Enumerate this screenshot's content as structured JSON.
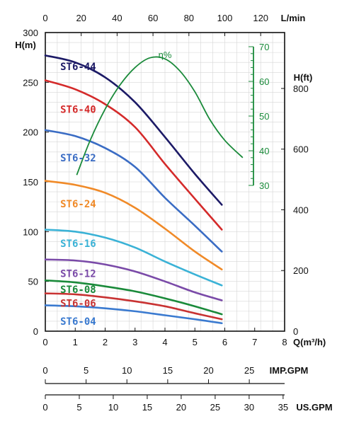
{
  "chart_data": {
    "type": "line",
    "title": "",
    "xlabel": "Q(m³/h)",
    "ylabel": "H(m)",
    "xlim": [
      0,
      8
    ],
    "ylim": [
      0,
      300
    ],
    "grid": true,
    "x_ticks": [
      "0",
      "1",
      "2",
      "3",
      "4",
      "5",
      "6",
      "7",
      "8"
    ],
    "y_ticks": [
      "0",
      "50",
      "100",
      "150",
      "200",
      "250",
      "300"
    ],
    "top_axis": {
      "label": "L/min",
      "ticks": [
        "0",
        "20",
        "40",
        "60",
        "80",
        "100",
        "120"
      ]
    },
    "right_axis": {
      "label": "H(ft)",
      "ticks": [
        "0",
        "200",
        "400",
        "600",
        "800"
      ]
    },
    "efficiency_axis": {
      "label": "η%",
      "ticks": [
        "30",
        "40",
        "50",
        "60",
        "70"
      ]
    },
    "imp_axis": {
      "label": "IMP.GPM",
      "ticks": [
        "0",
        "5",
        "10",
        "15",
        "20",
        "25"
      ]
    },
    "us_axis": {
      "label": "US.GPM",
      "ticks": [
        "0",
        "5",
        "10",
        "15",
        "20",
        "25",
        "30",
        "35"
      ]
    },
    "series": [
      {
        "name": "ST6-44",
        "color": "#1c1a66",
        "x": [
          0,
          1,
          2,
          3,
          4,
          5,
          5.9
        ],
        "y": [
          277,
          270,
          255,
          230,
          195,
          158,
          127
        ],
        "label_x": 0.5,
        "label_y": 266
      },
      {
        "name": "ST6-40",
        "color": "#d42a2a",
        "x": [
          0,
          1,
          2,
          3,
          4,
          5,
          5.9
        ],
        "y": [
          252,
          243,
          228,
          205,
          168,
          133,
          102
        ],
        "label_x": 0.5,
        "label_y": 223
      },
      {
        "name": "ST6-32",
        "color": "#3a6cc4",
        "x": [
          0,
          1,
          2,
          3,
          4,
          5,
          5.9
        ],
        "y": [
          202,
          196,
          184,
          165,
          134,
          106,
          80
        ],
        "label_x": 0.5,
        "label_y": 174
      },
      {
        "name": "ST6-24",
        "color": "#f08a28",
        "x": [
          0,
          1,
          2,
          3,
          4,
          5,
          5.9
        ],
        "y": [
          151,
          147,
          139,
          124,
          103,
          80,
          62
        ],
        "label_x": 0.5,
        "label_y": 128
      },
      {
        "name": "ST6-16",
        "color": "#3ab2d6",
        "x": [
          0,
          1,
          2,
          3,
          4,
          5,
          5.9
        ],
        "y": [
          102,
          100,
          94,
          84,
          70,
          57,
          46
        ],
        "label_x": 0.5,
        "label_y": 88
      },
      {
        "name": "ST6-12",
        "color": "#7a4aa8",
        "x": [
          0,
          1,
          2,
          3,
          4,
          5,
          5.9
        ],
        "y": [
          72,
          71,
          67,
          60,
          50,
          39,
          31
        ],
        "label_x": 0.5,
        "label_y": 58
      },
      {
        "name": "ST6-08",
        "color": "#1a8a3a",
        "x": [
          0,
          1,
          2,
          3,
          4,
          5,
          5.9
        ],
        "y": [
          51,
          49,
          45,
          40,
          33,
          25,
          17
        ],
        "label_x": 0.5,
        "label_y": 42
      },
      {
        "name": "ST6-06",
        "color": "#c83232",
        "x": [
          0,
          1,
          2,
          3,
          4,
          5,
          5.9
        ],
        "y": [
          38,
          37,
          34,
          30,
          25,
          18,
          12
        ],
        "label_x": 0.5,
        "label_y": 28
      },
      {
        "name": "ST6-04",
        "color": "#3a7ad0",
        "x": [
          0,
          1,
          2,
          3,
          4,
          5,
          5.9
        ],
        "y": [
          26,
          25,
          23,
          20,
          16,
          12,
          8
        ],
        "label_x": 0.5,
        "label_y": 10
      }
    ],
    "efficiency_curve": {
      "color": "#1a8a3a",
      "x": [
        1.05,
        1.5,
        2,
        2.5,
        3,
        3.5,
        4,
        4.5,
        5,
        5.5,
        6,
        6.6
      ],
      "eff": [
        33,
        43,
        52,
        59,
        64,
        66.8,
        66.5,
        63,
        57,
        49,
        43,
        38
      ]
    }
  }
}
